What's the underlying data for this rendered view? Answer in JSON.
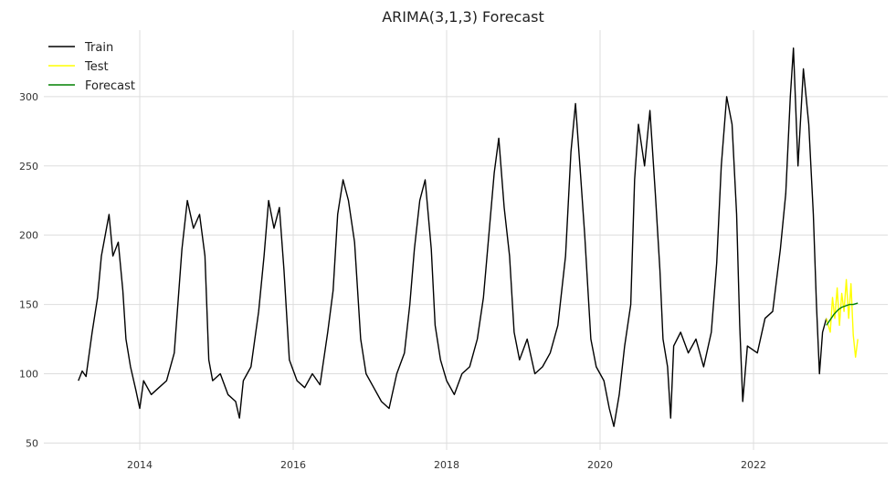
{
  "chart_data": {
    "type": "line",
    "title": "ARIMA(3,1,3) Forecast",
    "xlabel": "",
    "ylabel": "",
    "xlim": [
      2012.75,
      2023.75
    ],
    "ylim": [
      45,
      348
    ],
    "x_ticks": [
      2014,
      2016,
      2018,
      2020,
      2022
    ],
    "y_ticks": [
      50,
      100,
      150,
      200,
      250,
      300
    ],
    "grid": true,
    "legend_position": "top-left",
    "series": [
      {
        "name": "Train",
        "color": "#000000",
        "points": [
          [
            2013.2,
            95
          ],
          [
            2013.25,
            102
          ],
          [
            2013.3,
            98
          ],
          [
            2013.38,
            130
          ],
          [
            2013.45,
            155
          ],
          [
            2013.5,
            185
          ],
          [
            2013.55,
            200
          ],
          [
            2013.6,
            215
          ],
          [
            2013.65,
            185
          ],
          [
            2013.72,
            195
          ],
          [
            2013.78,
            160
          ],
          [
            2013.82,
            125
          ],
          [
            2013.88,
            105
          ],
          [
            2013.95,
            88
          ],
          [
            2014.0,
            75
          ],
          [
            2014.05,
            95
          ],
          [
            2014.15,
            85
          ],
          [
            2014.25,
            90
          ],
          [
            2014.35,
            95
          ],
          [
            2014.45,
            115
          ],
          [
            2014.55,
            190
          ],
          [
            2014.62,
            225
          ],
          [
            2014.7,
            205
          ],
          [
            2014.78,
            215
          ],
          [
            2014.85,
            185
          ],
          [
            2014.9,
            110
          ],
          [
            2014.95,
            95
          ],
          [
            2015.05,
            100
          ],
          [
            2015.15,
            85
          ],
          [
            2015.25,
            80
          ],
          [
            2015.3,
            68
          ],
          [
            2015.35,
            95
          ],
          [
            2015.45,
            105
          ],
          [
            2015.55,
            145
          ],
          [
            2015.62,
            185
          ],
          [
            2015.68,
            225
          ],
          [
            2015.75,
            205
          ],
          [
            2015.82,
            220
          ],
          [
            2015.88,
            175
          ],
          [
            2015.95,
            110
          ],
          [
            2016.05,
            95
          ],
          [
            2016.15,
            90
          ],
          [
            2016.25,
            100
          ],
          [
            2016.35,
            92
          ],
          [
            2016.45,
            130
          ],
          [
            2016.52,
            160
          ],
          [
            2016.58,
            215
          ],
          [
            2016.65,
            240
          ],
          [
            2016.72,
            225
          ],
          [
            2016.8,
            195
          ],
          [
            2016.88,
            125
          ],
          [
            2016.95,
            100
          ],
          [
            2017.05,
            90
          ],
          [
            2017.15,
            80
          ],
          [
            2017.25,
            75
          ],
          [
            2017.35,
            100
          ],
          [
            2017.45,
            115
          ],
          [
            2017.52,
            150
          ],
          [
            2017.58,
            190
          ],
          [
            2017.65,
            225
          ],
          [
            2017.72,
            240
          ],
          [
            2017.8,
            190
          ],
          [
            2017.85,
            135
          ],
          [
            2017.92,
            110
          ],
          [
            2018.0,
            95
          ],
          [
            2018.1,
            85
          ],
          [
            2018.2,
            100
          ],
          [
            2018.3,
            105
          ],
          [
            2018.4,
            125
          ],
          [
            2018.48,
            155
          ],
          [
            2018.55,
            200
          ],
          [
            2018.62,
            245
          ],
          [
            2018.68,
            270
          ],
          [
            2018.75,
            220
          ],
          [
            2018.82,
            185
          ],
          [
            2018.88,
            130
          ],
          [
            2018.95,
            110
          ],
          [
            2019.05,
            125
          ],
          [
            2019.15,
            100
          ],
          [
            2019.25,
            105
          ],
          [
            2019.35,
            115
          ],
          [
            2019.45,
            135
          ],
          [
            2019.55,
            185
          ],
          [
            2019.62,
            260
          ],
          [
            2019.68,
            295
          ],
          [
            2019.75,
            240
          ],
          [
            2019.8,
            200
          ],
          [
            2019.88,
            125
          ],
          [
            2019.95,
            105
          ],
          [
            2020.05,
            95
          ],
          [
            2020.12,
            75
          ],
          [
            2020.18,
            62
          ],
          [
            2020.25,
            85
          ],
          [
            2020.32,
            120
          ],
          [
            2020.4,
            150
          ],
          [
            2020.45,
            240
          ],
          [
            2020.5,
            280
          ],
          [
            2020.58,
            250
          ],
          [
            2020.65,
            290
          ],
          [
            2020.72,
            230
          ],
          [
            2020.78,
            175
          ],
          [
            2020.82,
            125
          ],
          [
            2020.88,
            105
          ],
          [
            2020.92,
            68
          ],
          [
            2020.96,
            120
          ],
          [
            2021.05,
            130
          ],
          [
            2021.15,
            115
          ],
          [
            2021.25,
            125
          ],
          [
            2021.35,
            105
          ],
          [
            2021.45,
            130
          ],
          [
            2021.52,
            180
          ],
          [
            2021.58,
            250
          ],
          [
            2021.65,
            300
          ],
          [
            2021.72,
            280
          ],
          [
            2021.78,
            215
          ],
          [
            2021.82,
            135
          ],
          [
            2021.86,
            80
          ],
          [
            2021.92,
            120
          ],
          [
            2022.05,
            115
          ],
          [
            2022.15,
            140
          ],
          [
            2022.25,
            145
          ],
          [
            2022.35,
            190
          ],
          [
            2022.42,
            230
          ],
          [
            2022.48,
            300
          ],
          [
            2022.52,
            335
          ],
          [
            2022.58,
            250
          ],
          [
            2022.65,
            320
          ],
          [
            2022.72,
            280
          ],
          [
            2022.78,
            215
          ],
          [
            2022.82,
            150
          ],
          [
            2022.86,
            100
          ],
          [
            2022.9,
            130
          ],
          [
            2022.95,
            140
          ]
        ]
      },
      {
        "name": "Test",
        "color": "#ffff00",
        "points": [
          [
            2022.95,
            140
          ],
          [
            2023.0,
            130
          ],
          [
            2023.03,
            155
          ],
          [
            2023.06,
            140
          ],
          [
            2023.09,
            162
          ],
          [
            2023.12,
            135
          ],
          [
            2023.15,
            158
          ],
          [
            2023.18,
            145
          ],
          [
            2023.21,
            168
          ],
          [
            2023.24,
            140
          ],
          [
            2023.27,
            165
          ],
          [
            2023.3,
            128
          ],
          [
            2023.33,
            112
          ],
          [
            2023.36,
            125
          ]
        ]
      },
      {
        "name": "Forecast",
        "color": "#008000",
        "points": [
          [
            2022.95,
            135
          ],
          [
            2023.0,
            139
          ],
          [
            2023.05,
            143
          ],
          [
            2023.1,
            146
          ],
          [
            2023.15,
            148
          ],
          [
            2023.2,
            149
          ],
          [
            2023.25,
            150
          ],
          [
            2023.3,
            150
          ],
          [
            2023.36,
            151
          ]
        ]
      }
    ]
  }
}
